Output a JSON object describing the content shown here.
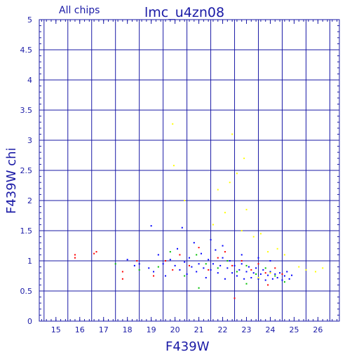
{
  "chart_data": {
    "type": "scatter",
    "title": "lmc_u4zn08",
    "subtitle": "All chips",
    "xlabel": "F439W",
    "ylabel": "F439W chi",
    "xlim": [
      14.3,
      26.9
    ],
    "ylim": [
      0,
      5
    ],
    "x_ticks": [
      "15",
      "16",
      "17",
      "18",
      "19",
      "20",
      "21",
      "22",
      "23",
      "24",
      "25",
      "26"
    ],
    "y_ticks": [
      "0",
      "0.5",
      "1",
      "1.5",
      "2",
      "2.5",
      "3",
      "3.5",
      "4",
      "4.5",
      "5"
    ],
    "grid": true,
    "colors": {
      "axis": "#1a1aa6",
      "grid": "#1a1aa6",
      "blue": "#0000ff",
      "red": "#ff0000",
      "green": "#00c000",
      "yellow": "#ffff00"
    },
    "series": [
      {
        "color": "#0000ff",
        "points": [
          [
            18.0,
            1.02
          ],
          [
            18.3,
            0.92
          ],
          [
            18.5,
            0.95
          ],
          [
            18.9,
            0.88
          ],
          [
            19.0,
            1.58
          ],
          [
            19.1,
            0.82
          ],
          [
            19.3,
            1.1
          ],
          [
            19.5,
            0.95
          ],
          [
            19.6,
            0.75
          ],
          [
            19.8,
            1.02
          ],
          [
            20.0,
            0.92
          ],
          [
            20.1,
            1.2
          ],
          [
            20.2,
            0.85
          ],
          [
            20.3,
            1.55
          ],
          [
            20.4,
            0.98
          ],
          [
            20.5,
            0.78
          ],
          [
            20.6,
            1.05
          ],
          [
            20.7,
            0.9
          ],
          [
            20.8,
            1.3
          ],
          [
            20.9,
            0.82
          ],
          [
            21.0,
            0.95
          ],
          [
            21.1,
            1.12
          ],
          [
            21.2,
            0.88
          ],
          [
            21.3,
            0.72
          ],
          [
            21.4,
            1.02
          ],
          [
            21.5,
            0.85
          ],
          [
            21.6,
            0.95
          ],
          [
            21.7,
            1.18
          ],
          [
            21.8,
            0.8
          ],
          [
            21.9,
            0.92
          ],
          [
            22.0,
            1.05
          ],
          [
            22.1,
            0.7
          ],
          [
            22.2,
            0.88
          ],
          [
            22.3,
            1.0
          ],
          [
            22.4,
            0.8
          ],
          [
            22.5,
            0.92
          ],
          [
            22.6,
            0.75
          ],
          [
            22.7,
            0.85
          ],
          [
            22.8,
            0.95
          ],
          [
            22.9,
            0.7
          ],
          [
            23.0,
            0.82
          ],
          [
            23.1,
            0.9
          ],
          [
            23.2,
            0.72
          ],
          [
            23.3,
            0.8
          ],
          [
            23.4,
            0.88
          ],
          [
            23.5,
            0.7
          ],
          [
            23.6,
            0.78
          ],
          [
            23.7,
            0.85
          ],
          [
            23.8,
            0.68
          ],
          [
            23.9,
            0.76
          ],
          [
            24.0,
            0.82
          ],
          [
            24.1,
            0.7
          ],
          [
            24.2,
            0.78
          ],
          [
            24.3,
            0.72
          ],
          [
            24.4,
            0.8
          ],
          [
            24.5,
            0.68
          ],
          [
            24.6,
            0.75
          ],
          [
            24.7,
            0.82
          ],
          [
            24.8,
            0.7
          ],
          [
            24.9,
            0.76
          ],
          [
            21.5,
            1.35
          ],
          [
            22.0,
            1.25
          ],
          [
            22.8,
            1.1
          ],
          [
            23.5,
            1.05
          ],
          [
            24.0,
            1.0
          ]
        ]
      },
      {
        "color": "#ff0000",
        "points": [
          [
            15.8,
            1.1
          ],
          [
            15.8,
            1.05
          ],
          [
            16.6,
            1.12
          ],
          [
            16.7,
            1.15
          ],
          [
            17.8,
            0.82
          ],
          [
            17.8,
            0.7
          ],
          [
            18.4,
            1.0
          ],
          [
            19.1,
            0.75
          ],
          [
            19.6,
            1.0
          ],
          [
            19.9,
            0.85
          ],
          [
            20.2,
            1.1
          ],
          [
            20.6,
            0.92
          ],
          [
            21.0,
            1.22
          ],
          [
            21.4,
            0.85
          ],
          [
            21.8,
            1.05
          ],
          [
            22.1,
            1.15
          ],
          [
            22.4,
            0.92
          ],
          [
            22.8,
            1.0
          ],
          [
            23.2,
            0.85
          ],
          [
            23.5,
            0.95
          ],
          [
            23.8,
            0.8
          ],
          [
            24.2,
            0.88
          ],
          [
            24.5,
            0.78
          ],
          [
            22.5,
            0.38
          ],
          [
            23.9,
            0.6
          ]
        ]
      },
      {
        "color": "#00c000",
        "points": [
          [
            17.5,
            0.95
          ],
          [
            18.5,
            0.85
          ],
          [
            19.3,
            0.9
          ],
          [
            19.8,
            1.15
          ],
          [
            20.4,
            0.75
          ],
          [
            20.9,
            1.1
          ],
          [
            21.3,
            0.95
          ],
          [
            21.8,
            0.88
          ],
          [
            22.2,
            1.0
          ],
          [
            22.6,
            0.82
          ],
          [
            23.0,
            0.92
          ],
          [
            23.4,
            0.78
          ],
          [
            23.8,
            0.88
          ],
          [
            24.2,
            0.75
          ],
          [
            24.6,
            0.65
          ],
          [
            23.0,
            0.62
          ],
          [
            21.0,
            0.55
          ]
        ]
      },
      {
        "color": "#ffff00",
        "points": [
          [
            19.9,
            3.27
          ],
          [
            19.95,
            2.58
          ],
          [
            20.4,
            2.0
          ],
          [
            21.6,
            1.6
          ],
          [
            21.8,
            2.18
          ],
          [
            22.1,
            1.8
          ],
          [
            22.3,
            2.3
          ],
          [
            22.4,
            3.1
          ],
          [
            22.6,
            2.45
          ],
          [
            22.9,
            2.7
          ],
          [
            23.0,
            1.85
          ],
          [
            22.8,
            1.5
          ],
          [
            23.3,
            1.4
          ],
          [
            23.6,
            1.45
          ],
          [
            23.9,
            1.15
          ],
          [
            24.3,
            1.2
          ],
          [
            24.6,
            1.1
          ],
          [
            25.2,
            0.9
          ],
          [
            25.5,
            0.85
          ],
          [
            25.9,
            0.82
          ],
          [
            26.2,
            0.88
          ],
          [
            23.5,
            0.72
          ],
          [
            24.0,
            0.8
          ]
        ]
      }
    ]
  }
}
